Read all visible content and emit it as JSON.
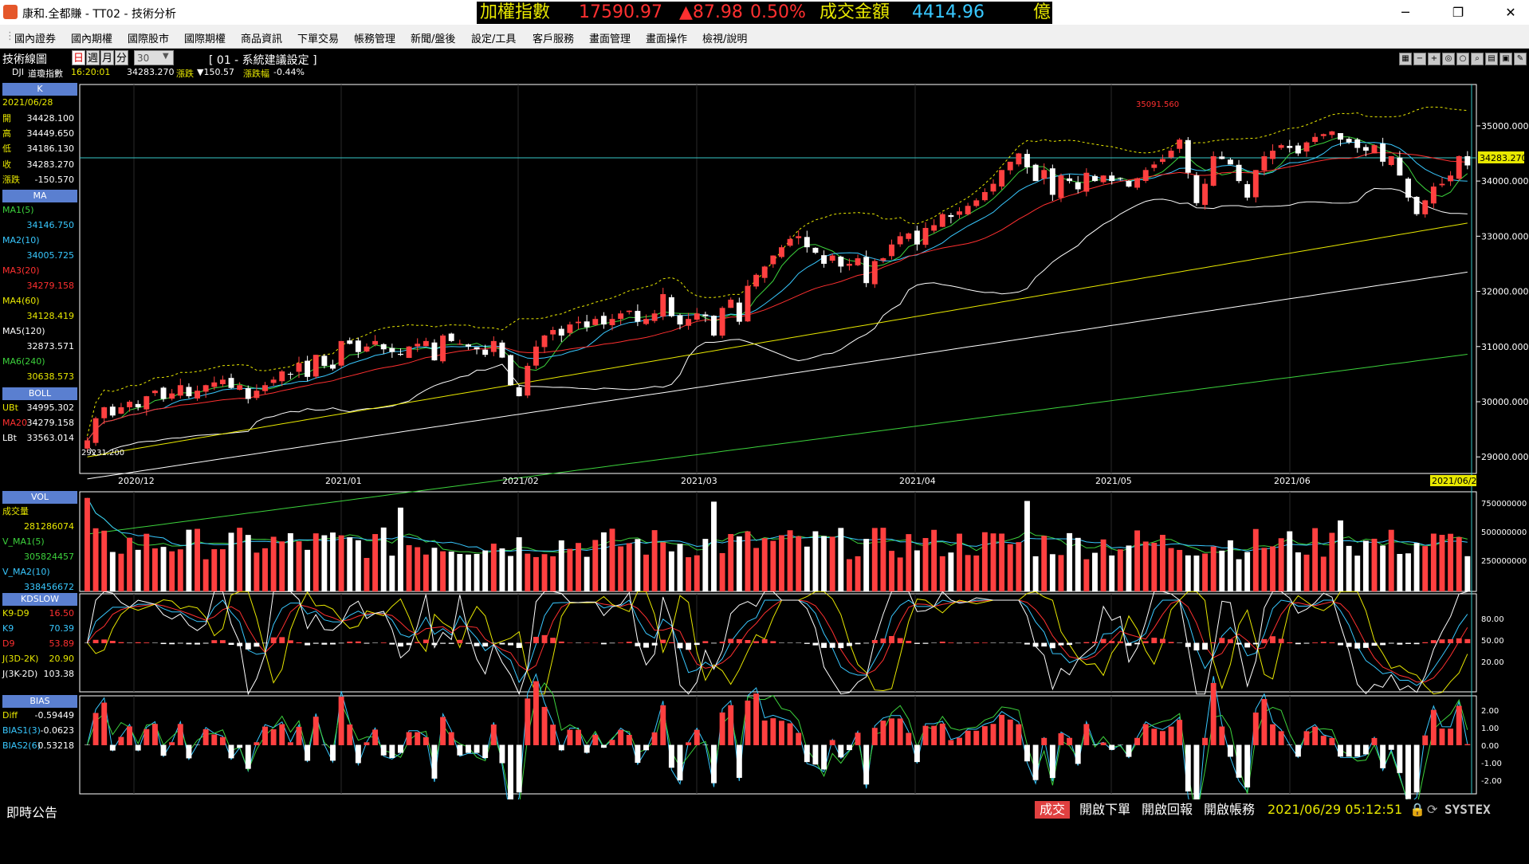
{
  "window": {
    "title": "康和.全都賺 - TT02 - 技術分析",
    "minimize": "─",
    "maximize": "❐",
    "close": "✕"
  },
  "ticker": {
    "label": "加權指數",
    "value": "17590.97",
    "change": "▲87.98",
    "pct": "0.50%",
    "turnover_label": "成交金額",
    "turnover": "4414.96",
    "unit": "億"
  },
  "menu": [
    "國內證券",
    "國內期權",
    "國際股市",
    "國際期權",
    "商品資訊",
    "下單交易",
    "帳務管理",
    "新聞/盤後",
    "設定/工具",
    "客戶服務",
    "畫面管理",
    "畫面操作",
    "檢視/說明"
  ],
  "chart_header": {
    "title": "技術線圖",
    "periods": [
      "日",
      "週",
      "月",
      "分"
    ],
    "period_count": "30",
    "layout": "[ 01 - 系統建議設定 ]"
  },
  "quote": {
    "symbol": "DJI",
    "name": "道瓊指數",
    "time": "16:20:01",
    "price": "34283.270",
    "change_label": "漲跌",
    "change": "▼150.57",
    "pct_label": "漲跌幅",
    "pct": "-0.44%"
  },
  "toolbar_icons": [
    "grid-icon",
    "minus-icon",
    "plus-icon",
    "zoom-in-icon",
    "zoom-out-icon",
    "search-icon",
    "print-icon",
    "save-icon",
    "settings-icon"
  ],
  "side": {
    "k_head": "K",
    "date": "2021/06/28",
    "k_rows": [
      {
        "label": "開",
        "value": "34428.100"
      },
      {
        "label": "高",
        "value": "34449.650"
      },
      {
        "label": "低",
        "value": "34186.130"
      },
      {
        "label": "收",
        "value": "34283.270"
      },
      {
        "label": "漲跌",
        "value": "-150.570"
      }
    ],
    "ma_head": "MA",
    "ma_rows": [
      {
        "label": "MA1(5)",
        "value": "34146.750",
        "color": "#3cd23c"
      },
      {
        "label": "MA2(10)",
        "value": "34005.725",
        "color": "#38c8ff"
      },
      {
        "label": "MA3(20)",
        "value": "34279.158",
        "color": "#ff3030"
      },
      {
        "label": "MA4(60)",
        "value": "34128.419",
        "color": "#e8e800"
      },
      {
        "label": "MA5(120)",
        "value": "32873.571",
        "color": "#ffffff"
      },
      {
        "label": "MA6(240)",
        "value": "30638.573",
        "color": "#3cd23c"
      }
    ],
    "boll_head": "BOLL",
    "boll_rows": [
      {
        "label": "UBt",
        "value": "34995.302",
        "color": "#e8e800"
      },
      {
        "label": "MA20",
        "value": "34279.158",
        "color": "#ff3030"
      },
      {
        "label": "LBt",
        "value": "33563.014",
        "color": "#ffffff"
      }
    ],
    "vol_head": "VOL",
    "vol_rows": [
      {
        "label": "成交量",
        "value": "281286074",
        "color": "#e8e800"
      },
      {
        "label": "V_MA1(5)",
        "value": "305824457",
        "color": "#3cd23c"
      },
      {
        "label": "V_MA2(10)",
        "value": "338456672",
        "color": "#38c8ff"
      }
    ],
    "kd_head": "KDSLOW",
    "kd_rows": [
      {
        "label": "K9-D9",
        "value": "16.50",
        "color": "#e8e800"
      },
      {
        "label": "K9",
        "value": "70.39",
        "color": "#38c8ff"
      },
      {
        "label": "D9",
        "value": "53.89",
        "color": "#ff3030"
      },
      {
        "label": "J(3D-2K)",
        "value": "20.90",
        "color": "#e8e800"
      },
      {
        "label": "J(3K-2D)",
        "value": "103.38",
        "color": "#ffffff"
      }
    ],
    "bias_head": "BIAS",
    "bias_rows": [
      {
        "label": "Diff",
        "value": "-0.59449",
        "color": "#e8e800"
      },
      {
        "label": "BIAS1(3)",
        "value": "-0.0623",
        "color": "#38c8ff"
      },
      {
        "label": "BIAS2(6)",
        "value": "0.53218",
        "color": "#38c8ff"
      }
    ]
  },
  "chart_data": {
    "type": "candlestick",
    "price_axis": [
      "35000.000",
      "34000.000",
      "33000.000",
      "32000.000",
      "31000.000",
      "30000.000",
      "29000.000"
    ],
    "current_price_label": "34283.270",
    "high_label": "35091.560",
    "low_label": "29231.200",
    "x_labels": [
      "2020/12",
      "2021/01",
      "2021/02",
      "2021/03",
      "2021/04",
      "2021/05",
      "2021/06"
    ],
    "cursor_date": "2021/06/28",
    "vol_axis": [
      "750000000",
      "500000000",
      "250000000"
    ],
    "kd_axis": [
      "80.00",
      "50.00",
      "20.00"
    ],
    "bias_axis": [
      "2.00",
      "1.00",
      "0.00",
      "-1.00",
      "-2.00"
    ],
    "price_range": [
      28700,
      35750
    ],
    "first_close": 29300,
    "closes": [
      29300,
      29700,
      29900,
      29750,
      29900,
      30000,
      29900,
      30100,
      30200,
      30050,
      30150,
      30300,
      30100,
      30200,
      30300,
      30350,
      30400,
      30250,
      30300,
      30050,
      30200,
      30300,
      30400,
      30550,
      30500,
      30700,
      30450,
      30850,
      30650,
      30600,
      31100,
      31050,
      30900,
      31000,
      31100,
      30950,
      30900,
      30850,
      31000,
      31050,
      31100,
      30750,
      31200,
      31100,
      31050,
      31000,
      30950,
      30850,
      31100,
      30800,
      30300,
      30100,
      30650,
      31000,
      31200,
      31300,
      31200,
      31400,
      31450,
      31350,
      31500,
      31400,
      31500,
      31600,
      31650,
      31450,
      31500,
      31600,
      31950,
      31550,
      31400,
      31500,
      31600,
      31550,
      31200,
      31700,
      31850,
      31450,
      32100,
      32300,
      32450,
      32650,
      32800,
      32950,
      33000,
      32800,
      32700,
      32500,
      32650,
      32450,
      32500,
      32600,
      32150,
      32550,
      32600,
      32850,
      33000,
      33050,
      32850,
      33150,
      33200,
      33400,
      33350,
      33450,
      33550,
      33650,
      33800,
      33950,
      34200,
      34350,
      34500,
      34250,
      34000,
      34200,
      33750,
      34100,
      34000,
      33850,
      34150,
      34000,
      34100,
      34000,
      34050,
      33900,
      34050,
      34200,
      34300,
      34400,
      34550,
      34750,
      34150,
      33600,
      33950,
      34450,
      34400,
      34300,
      34000,
      33700,
      34200,
      34450,
      34550,
      34650,
      34600,
      34500,
      34700,
      34800,
      34850,
      34900,
      34750,
      34700,
      34600,
      34550,
      34650,
      34350,
      34450,
      34100,
      33700,
      33400,
      33650,
      33900,
      33950,
      34100,
      34450,
      34283
    ]
  }
}
